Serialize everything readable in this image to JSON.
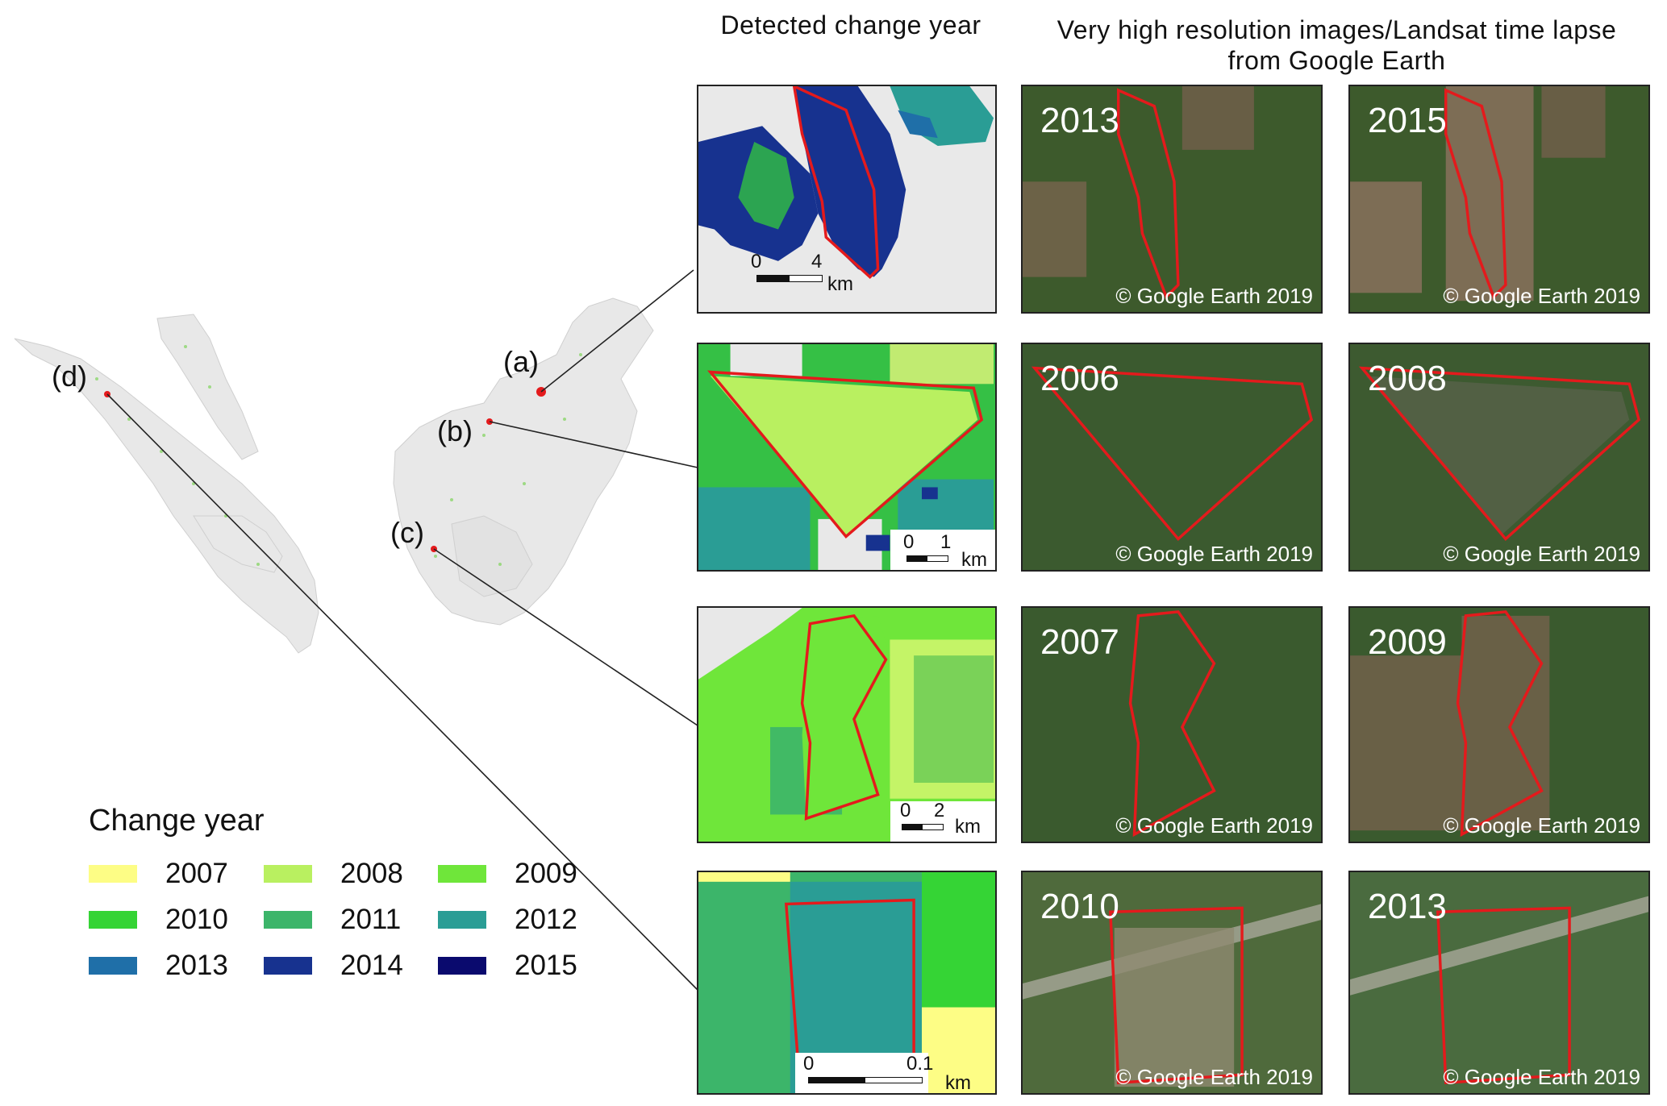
{
  "headers": {
    "detected": "Detected change year",
    "vhr_line1": "Very high resolution images/Landsat time lapse",
    "vhr_line2": "from Google Earth"
  },
  "site_labels": {
    "a": "(a)",
    "b": "(b)",
    "c": "(c)",
    "d": "(d)"
  },
  "legend": {
    "title": "Change year",
    "items": [
      {
        "label": "2007",
        "color": "#fdfd85"
      },
      {
        "label": "2008",
        "color": "#b9f060"
      },
      {
        "label": "2009",
        "color": "#6fe63a"
      },
      {
        "label": "2010",
        "color": "#35d435"
      },
      {
        "label": "2011",
        "color": "#3cb56a"
      },
      {
        "label": "2012",
        "color": "#2a9d95"
      },
      {
        "label": "2013",
        "color": "#1f6fa8"
      },
      {
        "label": "2014",
        "color": "#17328f"
      },
      {
        "label": "2015",
        "color": "#0a0a6e"
      }
    ]
  },
  "rows": [
    {
      "scale": {
        "zero": "0",
        "max": "4",
        "unit": "km"
      },
      "year_before": "2013",
      "year_after": "2015",
      "credit": "© Google Earth 2019"
    },
    {
      "scale": {
        "zero": "0",
        "max": "1",
        "unit": "km"
      },
      "year_before": "2006",
      "year_after": "2008",
      "credit": "© Google Earth 2019"
    },
    {
      "scale": {
        "zero": "0",
        "max": "2",
        "unit": "km"
      },
      "year_before": "2007",
      "year_after": "2009",
      "credit": "© Google Earth 2019"
    },
    {
      "scale": {
        "zero": "0",
        "max": "0.1",
        "unit": "km"
      },
      "year_before": "2010",
      "year_after": "2013",
      "credit": "© Google Earth 2019"
    }
  ],
  "colors": {
    "outline": "#e41a1c",
    "land": "#e8e8e8",
    "leader": "#222222"
  }
}
